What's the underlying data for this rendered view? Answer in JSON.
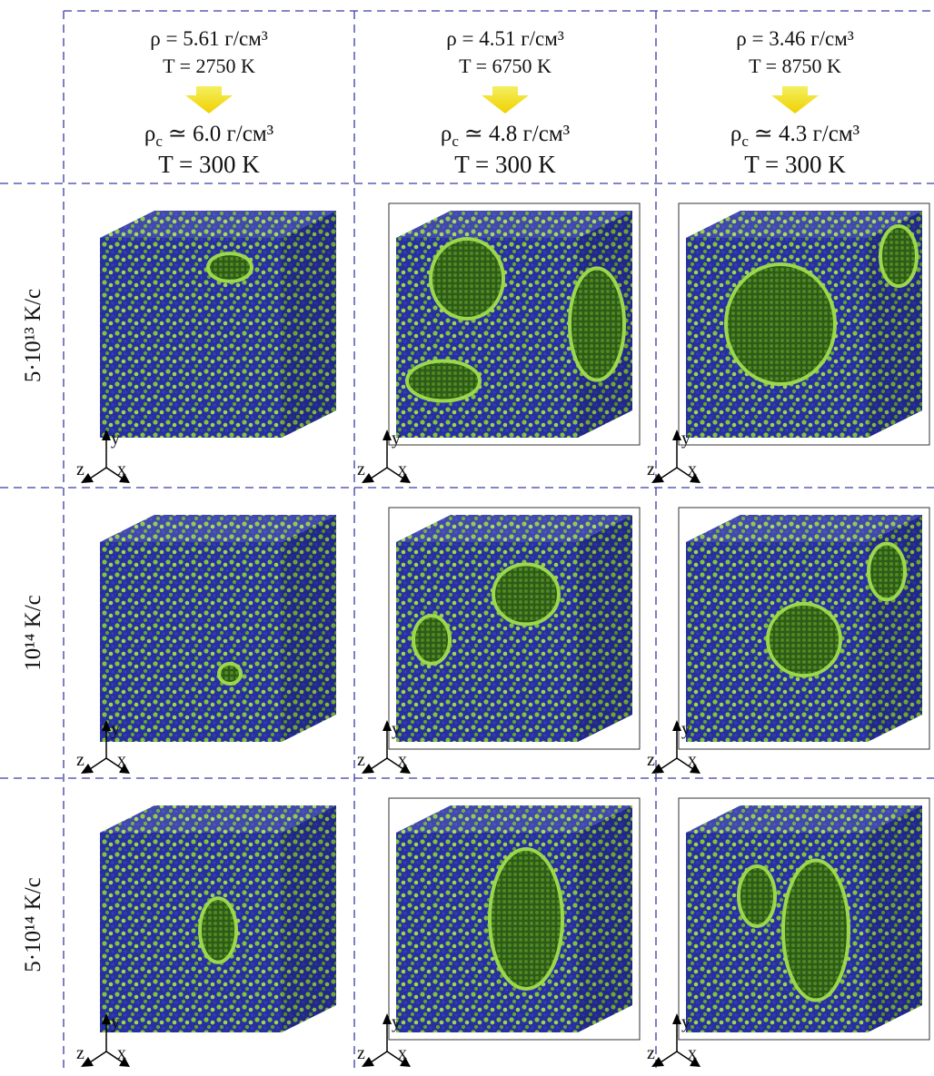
{
  "columns": [
    {
      "rho": "ρ = 5.61 г/см³",
      "T": "T = 2750 K",
      "rho_c": {
        "symbol": "ρ",
        "subscript": "c",
        "rest": "≃ 6.0 г/см³"
      },
      "T_final": "T = 300 K"
    },
    {
      "rho": "ρ = 4.51 г/см³",
      "T": "T = 6750 K",
      "rho_c": {
        "symbol": "ρ",
        "subscript": "c",
        "rest": "≃ 4.8 г/см³"
      },
      "T_final": "T = 300 K"
    },
    {
      "rho": "ρ = 3.46 г/см³",
      "T": "T = 8750 K",
      "rho_c": {
        "symbol": "ρ",
        "subscript": "c",
        "rest": "≃ 4.3 г/см³"
      },
      "T_final": "T = 300 K"
    }
  ],
  "rows": [
    {
      "label": "5·10¹³ K/c"
    },
    {
      "label": "10¹⁴ K/c"
    },
    {
      "label": "5·10¹⁴ K/c"
    }
  ],
  "axes": {
    "x": "x",
    "y": "y",
    "z": "z"
  }
}
